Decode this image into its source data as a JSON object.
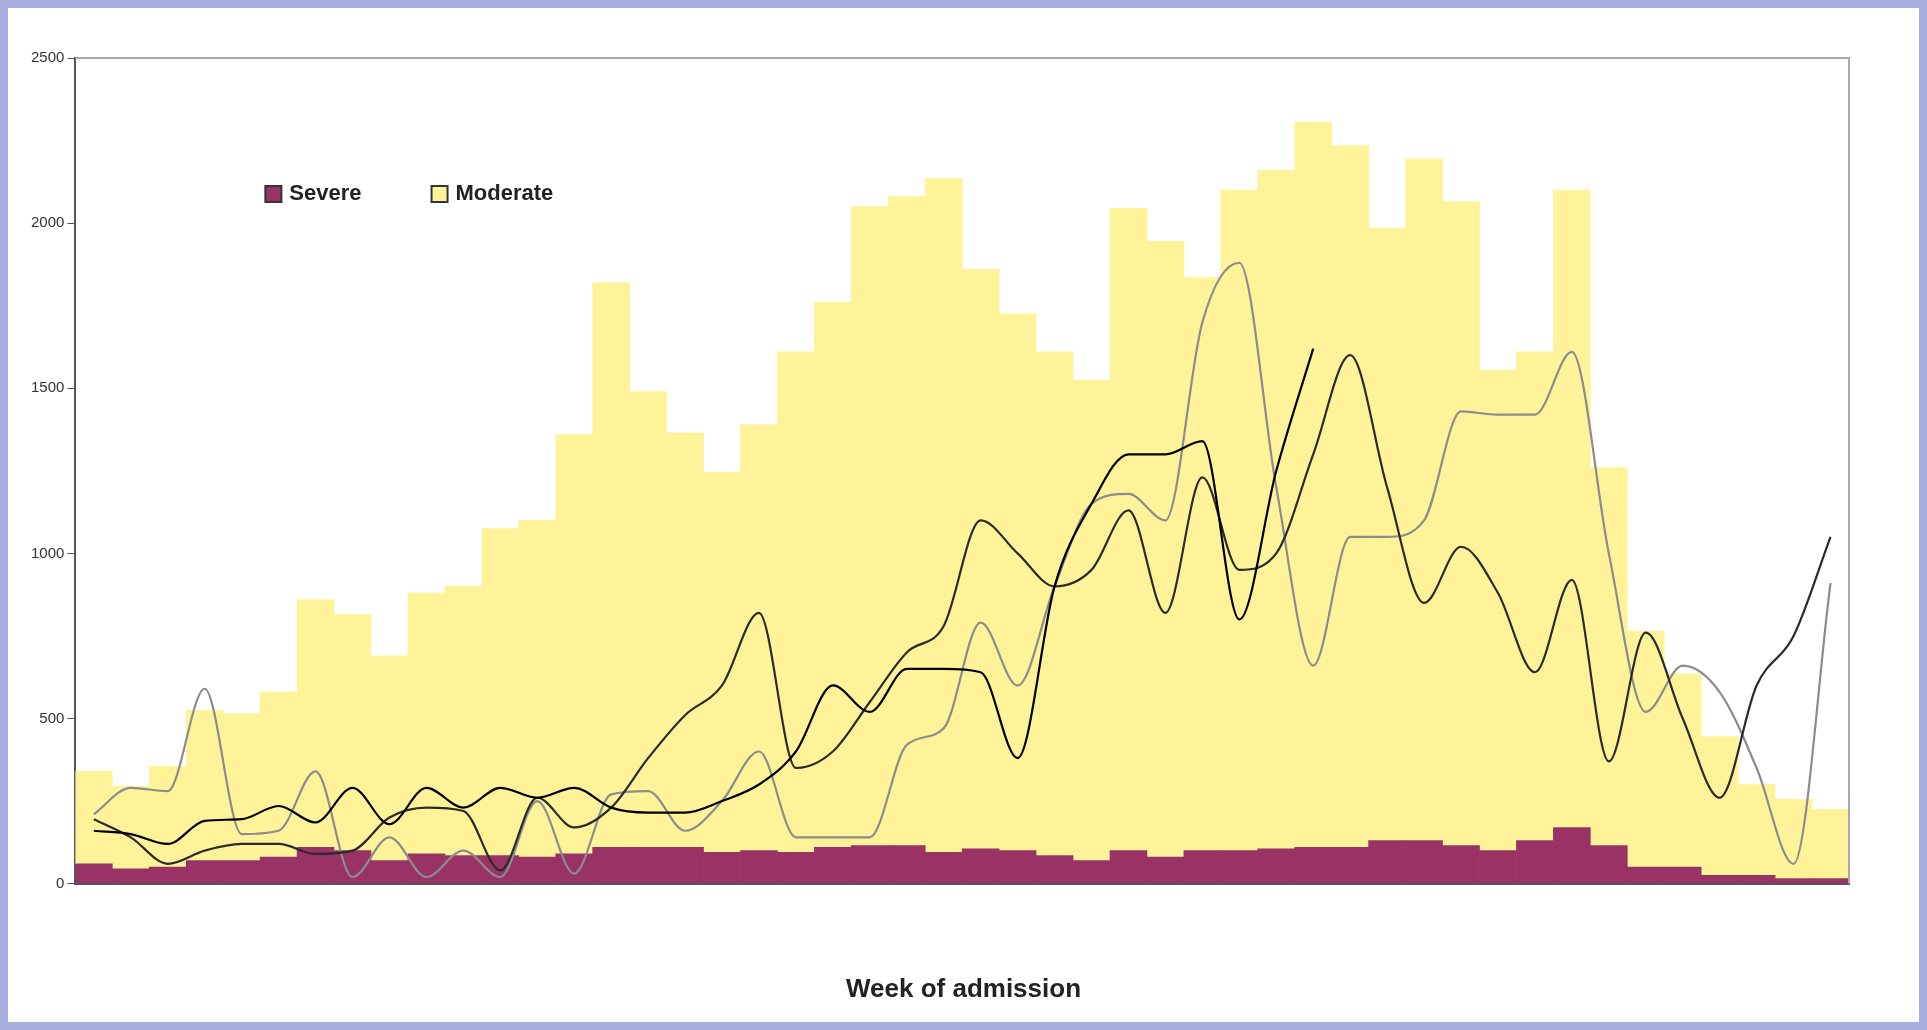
{
  "chart_data": {
    "type": "bar",
    "xlabel": "Week of admission",
    "stacked": true,
    "legend": "top left",
    "grid": false,
    "ylim": [
      0,
      2500
    ],
    "yticks": [
      0,
      500,
      1000,
      1500,
      2000,
      2500
    ],
    "categories": [
      null,
      null,
      null,
      null,
      null,
      null,
      null,
      null,
      null,
      null,
      null,
      null,
      null,
      null,
      null,
      null,
      null,
      null,
      null,
      null,
      null,
      null,
      null,
      null,
      null,
      null,
      null,
      null,
      null,
      null,
      null,
      null,
      null,
      null,
      null,
      null,
      null,
      null,
      null,
      null,
      null,
      null,
      null,
      null,
      null,
      null,
      null,
      null
    ],
    "series": [
      {
        "name": "Severe",
        "color": "#993366",
        "values": [
          60,
          45,
          50,
          70,
          70,
          80,
          110,
          100,
          70,
          90,
          85,
          85,
          80,
          90,
          110,
          110,
          110,
          95,
          100,
          95,
          110,
          115,
          115,
          95,
          105,
          100,
          85,
          70,
          100,
          80,
          100,
          100,
          105,
          110,
          110,
          130,
          130,
          115,
          100,
          130,
          170,
          115,
          50,
          50,
          25,
          25,
          15,
          15
        ]
      },
      {
        "name": "Moderate",
        "color": "#fff39a",
        "values": [
          280,
          250,
          305,
          455,
          445,
          500,
          750,
          715,
          620,
          790,
          815,
          990,
          1020,
          1270,
          1710,
          1380,
          1255,
          1150,
          1290,
          1515,
          1650,
          1935,
          1965,
          2040,
          1755,
          1625,
          1525,
          1455,
          1945,
          1865,
          1735,
          2000,
          2055,
          2195,
          2125,
          1855,
          2065,
          1950,
          1455,
          1480,
          1930,
          1145,
          715,
          585,
          420,
          275,
          240,
          210
        ]
      },
      {
        "type": "line",
        "color": "#000000",
        "marker": "none",
        "values": [
          160,
          150,
          120,
          190,
          195,
          235,
          185,
          290,
          180,
          290,
          230,
          290,
          260,
          290,
          230,
          215,
          215,
          250,
          300,
          400,
          600,
          520,
          650,
          650,
          640,
          380,
          900,
          1150,
          1300,
          1300,
          1340,
          800,
          1250,
          1620,
          null,
          null,
          null,
          null,
          null,
          null,
          null,
          null,
          null,
          null,
          null,
          null,
          null,
          null
        ]
      },
      {
        "type": "line",
        "color": "#2b2b2b",
        "marker": "none",
        "values": [
          195,
          140,
          60,
          100,
          120,
          120,
          90,
          100,
          200,
          230,
          220,
          40,
          260,
          170,
          230,
          380,
          510,
          600,
          820,
          350,
          400,
          550,
          700,
          780,
          1100,
          1000,
          900,
          950,
          1130,
          820,
          1230,
          950,
          1000,
          1300,
          1600,
          1200,
          850,
          1020,
          880,
          640,
          920,
          370,
          760,
          500,
          260,
          600,
          750,
          1050
        ]
      },
      {
        "type": "line",
        "color": "#8c8c8c",
        "marker": "none",
        "values": [
          210,
          290,
          280,
          590,
          150,
          160,
          340,
          20,
          140,
          20,
          100,
          20,
          250,
          30,
          270,
          280,
          160,
          250,
          400,
          140,
          140,
          140,
          420,
          470,
          790,
          600,
          900,
          1150,
          1180,
          1100,
          1700,
          1880,
          1200,
          660,
          1050,
          1050,
          1100,
          1430,
          1420,
          1420,
          1610,
          1000,
          520,
          660,
          580,
          350,
          60,
          910
        ]
      }
    ]
  }
}
